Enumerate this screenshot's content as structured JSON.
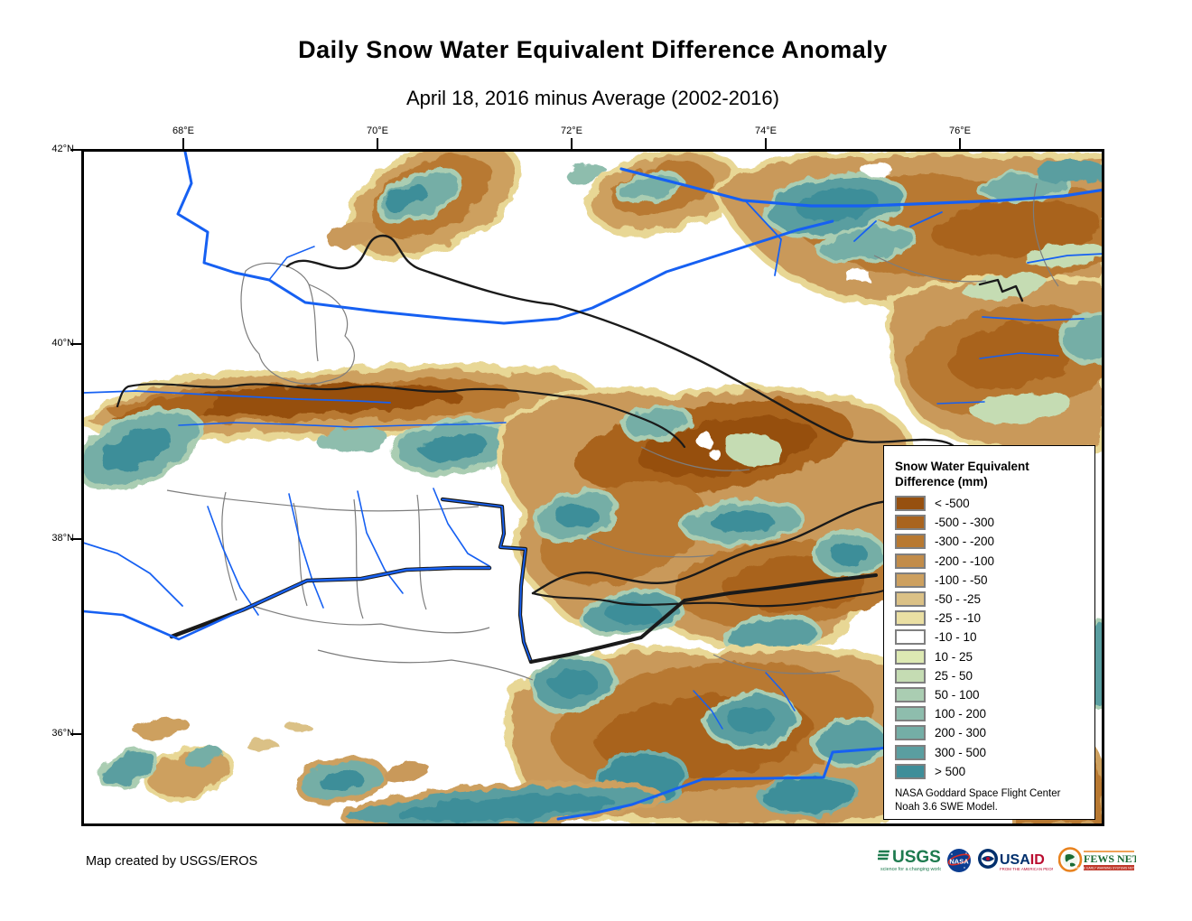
{
  "title": "Daily Snow Water Equivalent Difference Anomaly",
  "subtitle": "April 18, 2016 minus Average (2002-2016)",
  "map": {
    "x_ticks": [
      "68°E",
      "70°E",
      "72°E",
      "74°E",
      "76°E"
    ],
    "y_ticks": [
      "42°N",
      "40°N",
      "38°N",
      "36°N"
    ],
    "river_color": "#1660f2",
    "country_border_color": "#1a1a1a",
    "admin_border_color": "#7d7d7d"
  },
  "legend": {
    "title_line1": "Snow Water Equivalent",
    "title_line2": "Difference (mm)",
    "entries": [
      {
        "label": "< -500",
        "color": "#96500f"
      },
      {
        "label": "-500 - -300",
        "color": "#a9641f"
      },
      {
        "label": "-300 - -200",
        "color": "#b87931"
      },
      {
        "label": "-200 - -100",
        "color": "#c28c49"
      },
      {
        "label": "-100 - -50",
        "color": "#cda05f"
      },
      {
        "label": "-50 - -25",
        "color": "#dbc186"
      },
      {
        "label": "-25 - -10",
        "color": "#eadfa3"
      },
      {
        "label": "-10 - 10",
        "color": "#ffffff"
      },
      {
        "label": "10 - 25",
        "color": "#dde9b3"
      },
      {
        "label": "25 - 50",
        "color": "#c5dcb3"
      },
      {
        "label": "50 - 100",
        "color": "#aacdb2"
      },
      {
        "label": "100 - 200",
        "color": "#8ebdad"
      },
      {
        "label": "200 - 300",
        "color": "#74aea6"
      },
      {
        "label": "300 - 500",
        "color": "#5a9ea0"
      },
      {
        "label": "> 500",
        "color": "#3e8e99"
      }
    ],
    "note_line1": "NASA Goddard Space Flight Center",
    "note_line2": "Noah 3.6 SWE Model."
  },
  "credits": "Map created by USGS/EROS",
  "logos": {
    "usgs": {
      "name": "USGS",
      "tagline": "science for a changing world",
      "color": "#1e7b4f"
    },
    "nasa": {
      "name": "NASA",
      "color": "#0b3d91"
    },
    "usaid": {
      "name_part1": "USA",
      "name_part2": "ID",
      "tagline": "FROM THE AMERICAN PEOPLE",
      "blue": "#002f6c",
      "red": "#ba0c2f"
    },
    "fews_net": {
      "name": "FEWS NET",
      "tagline": "FAMINE EARLY WARNING SYSTEMS NETWORK",
      "green": "#1a6b33",
      "orange": "#e8821e",
      "red": "#c0392b"
    }
  }
}
